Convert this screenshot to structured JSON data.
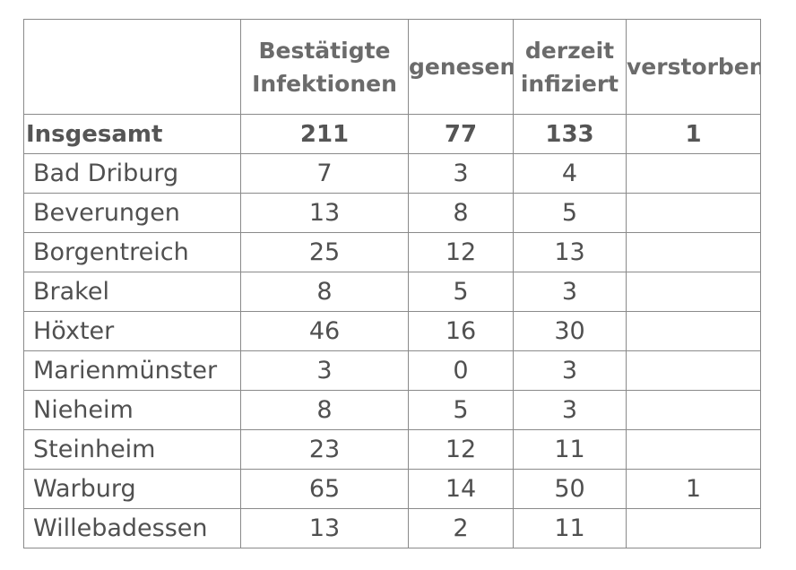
{
  "table": {
    "headers": [
      "",
      "Bestätigte Infektionen",
      "genesen",
      "derzeit infiziert",
      "verstorben"
    ],
    "header_lines": [
      [],
      [
        "Bestätigte",
        "Infektionen"
      ],
      [
        "genesen"
      ],
      [
        "derzeit",
        "infiziert"
      ],
      [
        "verstorben"
      ]
    ],
    "total": {
      "label": "Insgesamt",
      "bestaetigt": "211",
      "genesen": "77",
      "infiziert": "133",
      "verstorben": "1"
    },
    "rows": [
      {
        "name": "Bad Driburg",
        "bestaetigt": "7",
        "genesen": "3",
        "infiziert": "4",
        "verstorben": ""
      },
      {
        "name": "Beverungen",
        "bestaetigt": "13",
        "genesen": "8",
        "infiziert": "5",
        "verstorben": ""
      },
      {
        "name": "Borgentreich",
        "bestaetigt": "25",
        "genesen": "12",
        "infiziert": "13",
        "verstorben": ""
      },
      {
        "name": "Brakel",
        "bestaetigt": "8",
        "genesen": "5",
        "infiziert": "3",
        "verstorben": ""
      },
      {
        "name": "Höxter",
        "bestaetigt": "46",
        "genesen": "16",
        "infiziert": "30",
        "verstorben": ""
      },
      {
        "name": "Marienmünster",
        "bestaetigt": "3",
        "genesen": "0",
        "infiziert": "3",
        "verstorben": ""
      },
      {
        "name": "Nieheim",
        "bestaetigt": "8",
        "genesen": "5",
        "infiziert": "3",
        "verstorben": ""
      },
      {
        "name": "Steinheim",
        "bestaetigt": "23",
        "genesen": "12",
        "infiziert": "11",
        "verstorben": ""
      },
      {
        "name": "Warburg",
        "bestaetigt": "65",
        "genesen": "14",
        "infiziert": "50",
        "verstorben": "1"
      },
      {
        "name": "Willebadessen",
        "bestaetigt": "13",
        "genesen": "2",
        "infiziert": "11",
        "verstorben": ""
      }
    ]
  }
}
